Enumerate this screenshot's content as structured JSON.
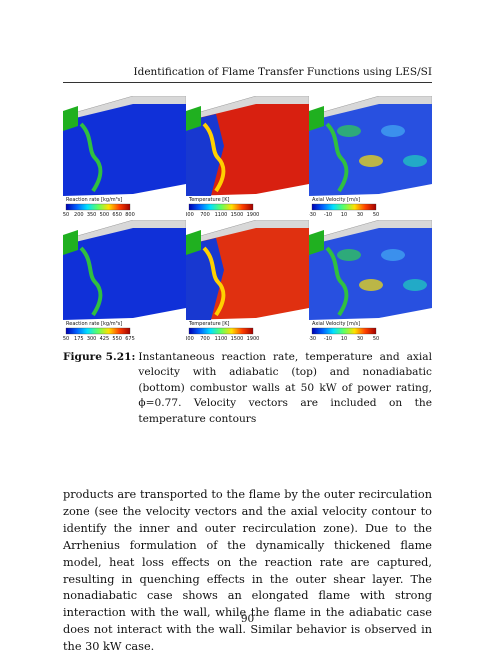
{
  "header": {
    "title": "Identification of Flame Transfer Functions using LES/SI"
  },
  "figure": {
    "panels": [
      {
        "colorbar_label": "Reaction rate [kg/m³s]",
        "ticks": [
          50,
          200,
          350,
          500,
          650,
          800
        ]
      },
      {
        "colorbar_label": "Temperature [K]",
        "ticks": [
          300,
          700,
          1100,
          1500,
          1900
        ]
      },
      {
        "colorbar_label": "Axial Velocity [m/s]",
        "ticks": [
          -30,
          -10,
          10,
          30,
          50
        ]
      },
      {
        "colorbar_label": "Reaction rate [kg/m³s]",
        "ticks": [
          50,
          175,
          300,
          425,
          550,
          675
        ]
      },
      {
        "colorbar_label": "Temperature [K]",
        "ticks": [
          300,
          700,
          1100,
          1500,
          1900
        ]
      },
      {
        "colorbar_label": "Axial Velocity [m/s]",
        "ticks": [
          -30,
          -10,
          10,
          30,
          50
        ]
      }
    ],
    "caption_label": "Figure 5.21:",
    "caption_text": "Instantaneous reaction rate, temperature and axial velocity with adiabatic (top) and nonadiabatic (bottom) combustor walls at 50 kW of power rating, ϕ=0.77. Velocity vectors are included on the temperature contours"
  },
  "body": {
    "paragraph": "products are transported to the flame by the outer recirculation zone (see the velocity vectors and the axial velocity contour to identify the inner and outer recirculation zone). Due to the Arrhenius formulation of the dynamically thickened flame model, heat loss effects on the reaction rate are captured, resulting in quenching effects in the outer shear layer. The nonadiabatic case shows an elongated flame with strong interaction with the wall, while the flame in the adiabatic case does not interact with the wall. Similar behavior is observed in the 30 kW case."
  },
  "footer": {
    "page_number": "90"
  }
}
